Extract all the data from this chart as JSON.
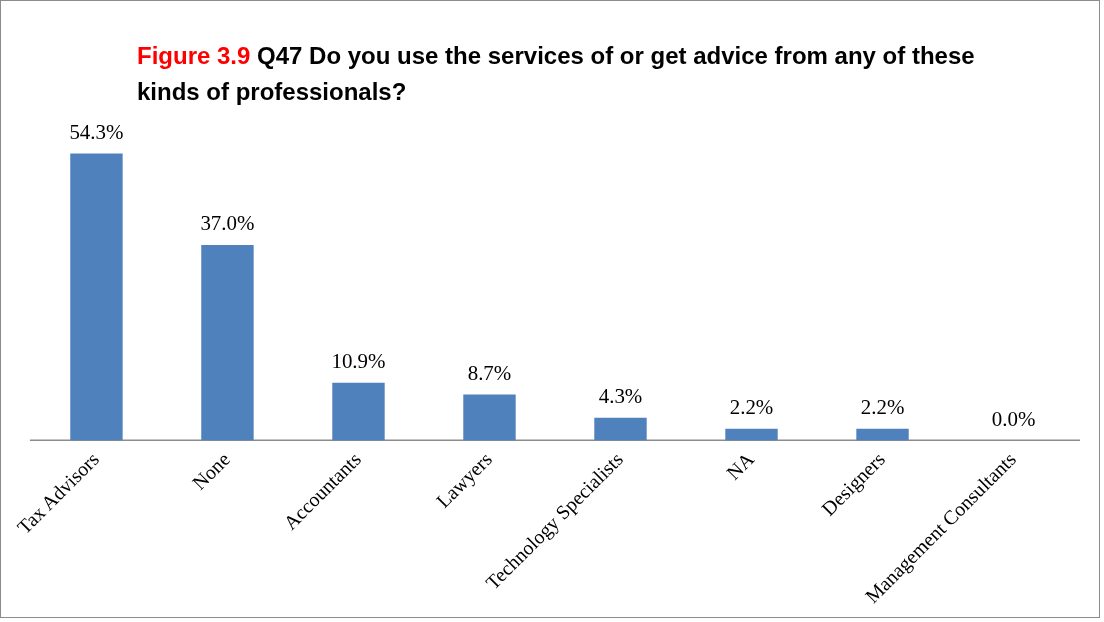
{
  "chart_data": {
    "type": "bar",
    "title": "Figure 3.9 Q47 Do you use the services of or get advice from any of these kinds of professionals?",
    "categories": [
      "Tax Advisors",
      "None",
      "Accountants",
      "Lawyers",
      "Technology Specialists",
      "NA",
      "Designers",
      "Management Consultants"
    ],
    "values": [
      54.3,
      37.0,
      10.9,
      8.7,
      4.3,
      2.2,
      2.2,
      0.0
    ],
    "value_labels": [
      "54.3%",
      "37.0%",
      "10.9%",
      "8.7%",
      "4.3%",
      "2.2%",
      "2.2%",
      "0.0%"
    ],
    "color": "#4f81bd",
    "grid": false,
    "legend": false
  }
}
